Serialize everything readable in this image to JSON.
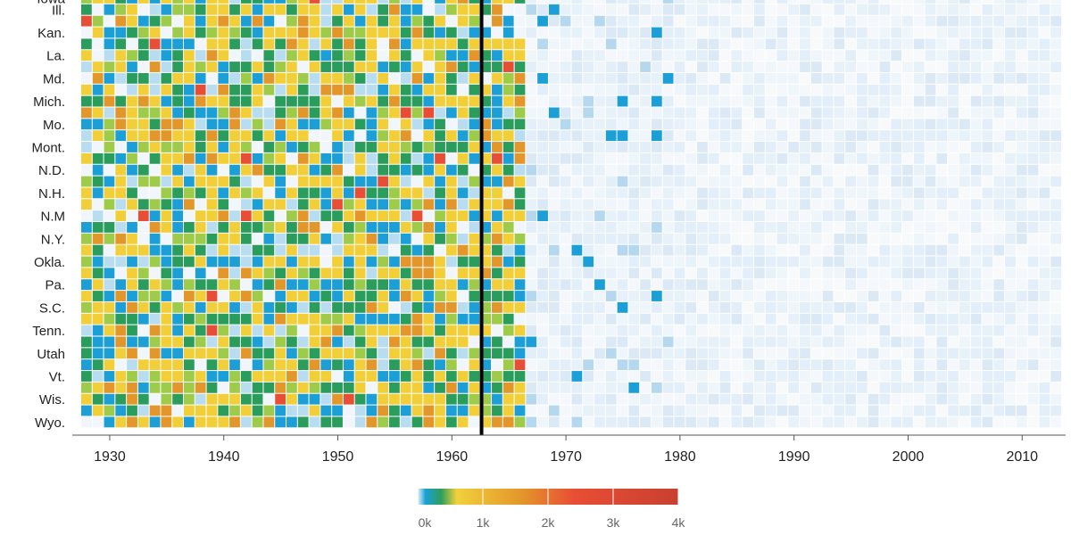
{
  "chart_data": {
    "type": "heatmap",
    "title": "",
    "xlabel": "",
    "ylabel": "",
    "x_range": [
      1928,
      2013
    ],
    "x_ticks": [
      1930,
      1940,
      1950,
      1960,
      1970,
      1980,
      1990,
      2000,
      2010
    ],
    "rows_total": 38,
    "states": [
      {
        "label": "Iowa",
        "row": 0
      },
      {
        "label": "Ill.",
        "row": 1
      },
      {
        "label": "Kan.",
        "row": 3
      },
      {
        "label": "La.",
        "row": 5
      },
      {
        "label": "Md.",
        "row": 7
      },
      {
        "label": "Mich.",
        "row": 9
      },
      {
        "label": "Mo.",
        "row": 11
      },
      {
        "label": "Mont.",
        "row": 13
      },
      {
        "label": "N.D.",
        "row": 15
      },
      {
        "label": "N.H.",
        "row": 17
      },
      {
        "label": "N.M",
        "row": 19
      },
      {
        "label": "N.Y.",
        "row": 21
      },
      {
        "label": "Okla.",
        "row": 23
      },
      {
        "label": "Pa.",
        "row": 25
      },
      {
        "label": "S.C.",
        "row": 27
      },
      {
        "label": "Tenn.",
        "row": 29
      },
      {
        "label": "Utah",
        "row": 31
      },
      {
        "label": "Vt.",
        "row": 33
      },
      {
        "label": "Wis.",
        "row": 35
      },
      {
        "label": "Wyo.",
        "row": 37
      }
    ],
    "vaccine_year": 1963,
    "color_scale": {
      "stops": [
        "#e6f1fa",
        "#19a0d6",
        "#2e9e5b",
        "#f2d03c",
        "#e3962a",
        "#e84e35",
        "#c8402f"
      ],
      "domain": [
        0,
        4000
      ]
    },
    "legend": {
      "ticks": [
        "0k",
        "1k",
        "2k",
        "3k",
        "4k"
      ],
      "values": [
        0,
        1000,
        2000,
        3000,
        4000
      ],
      "placement": "bottom-center"
    },
    "grid": false
  }
}
